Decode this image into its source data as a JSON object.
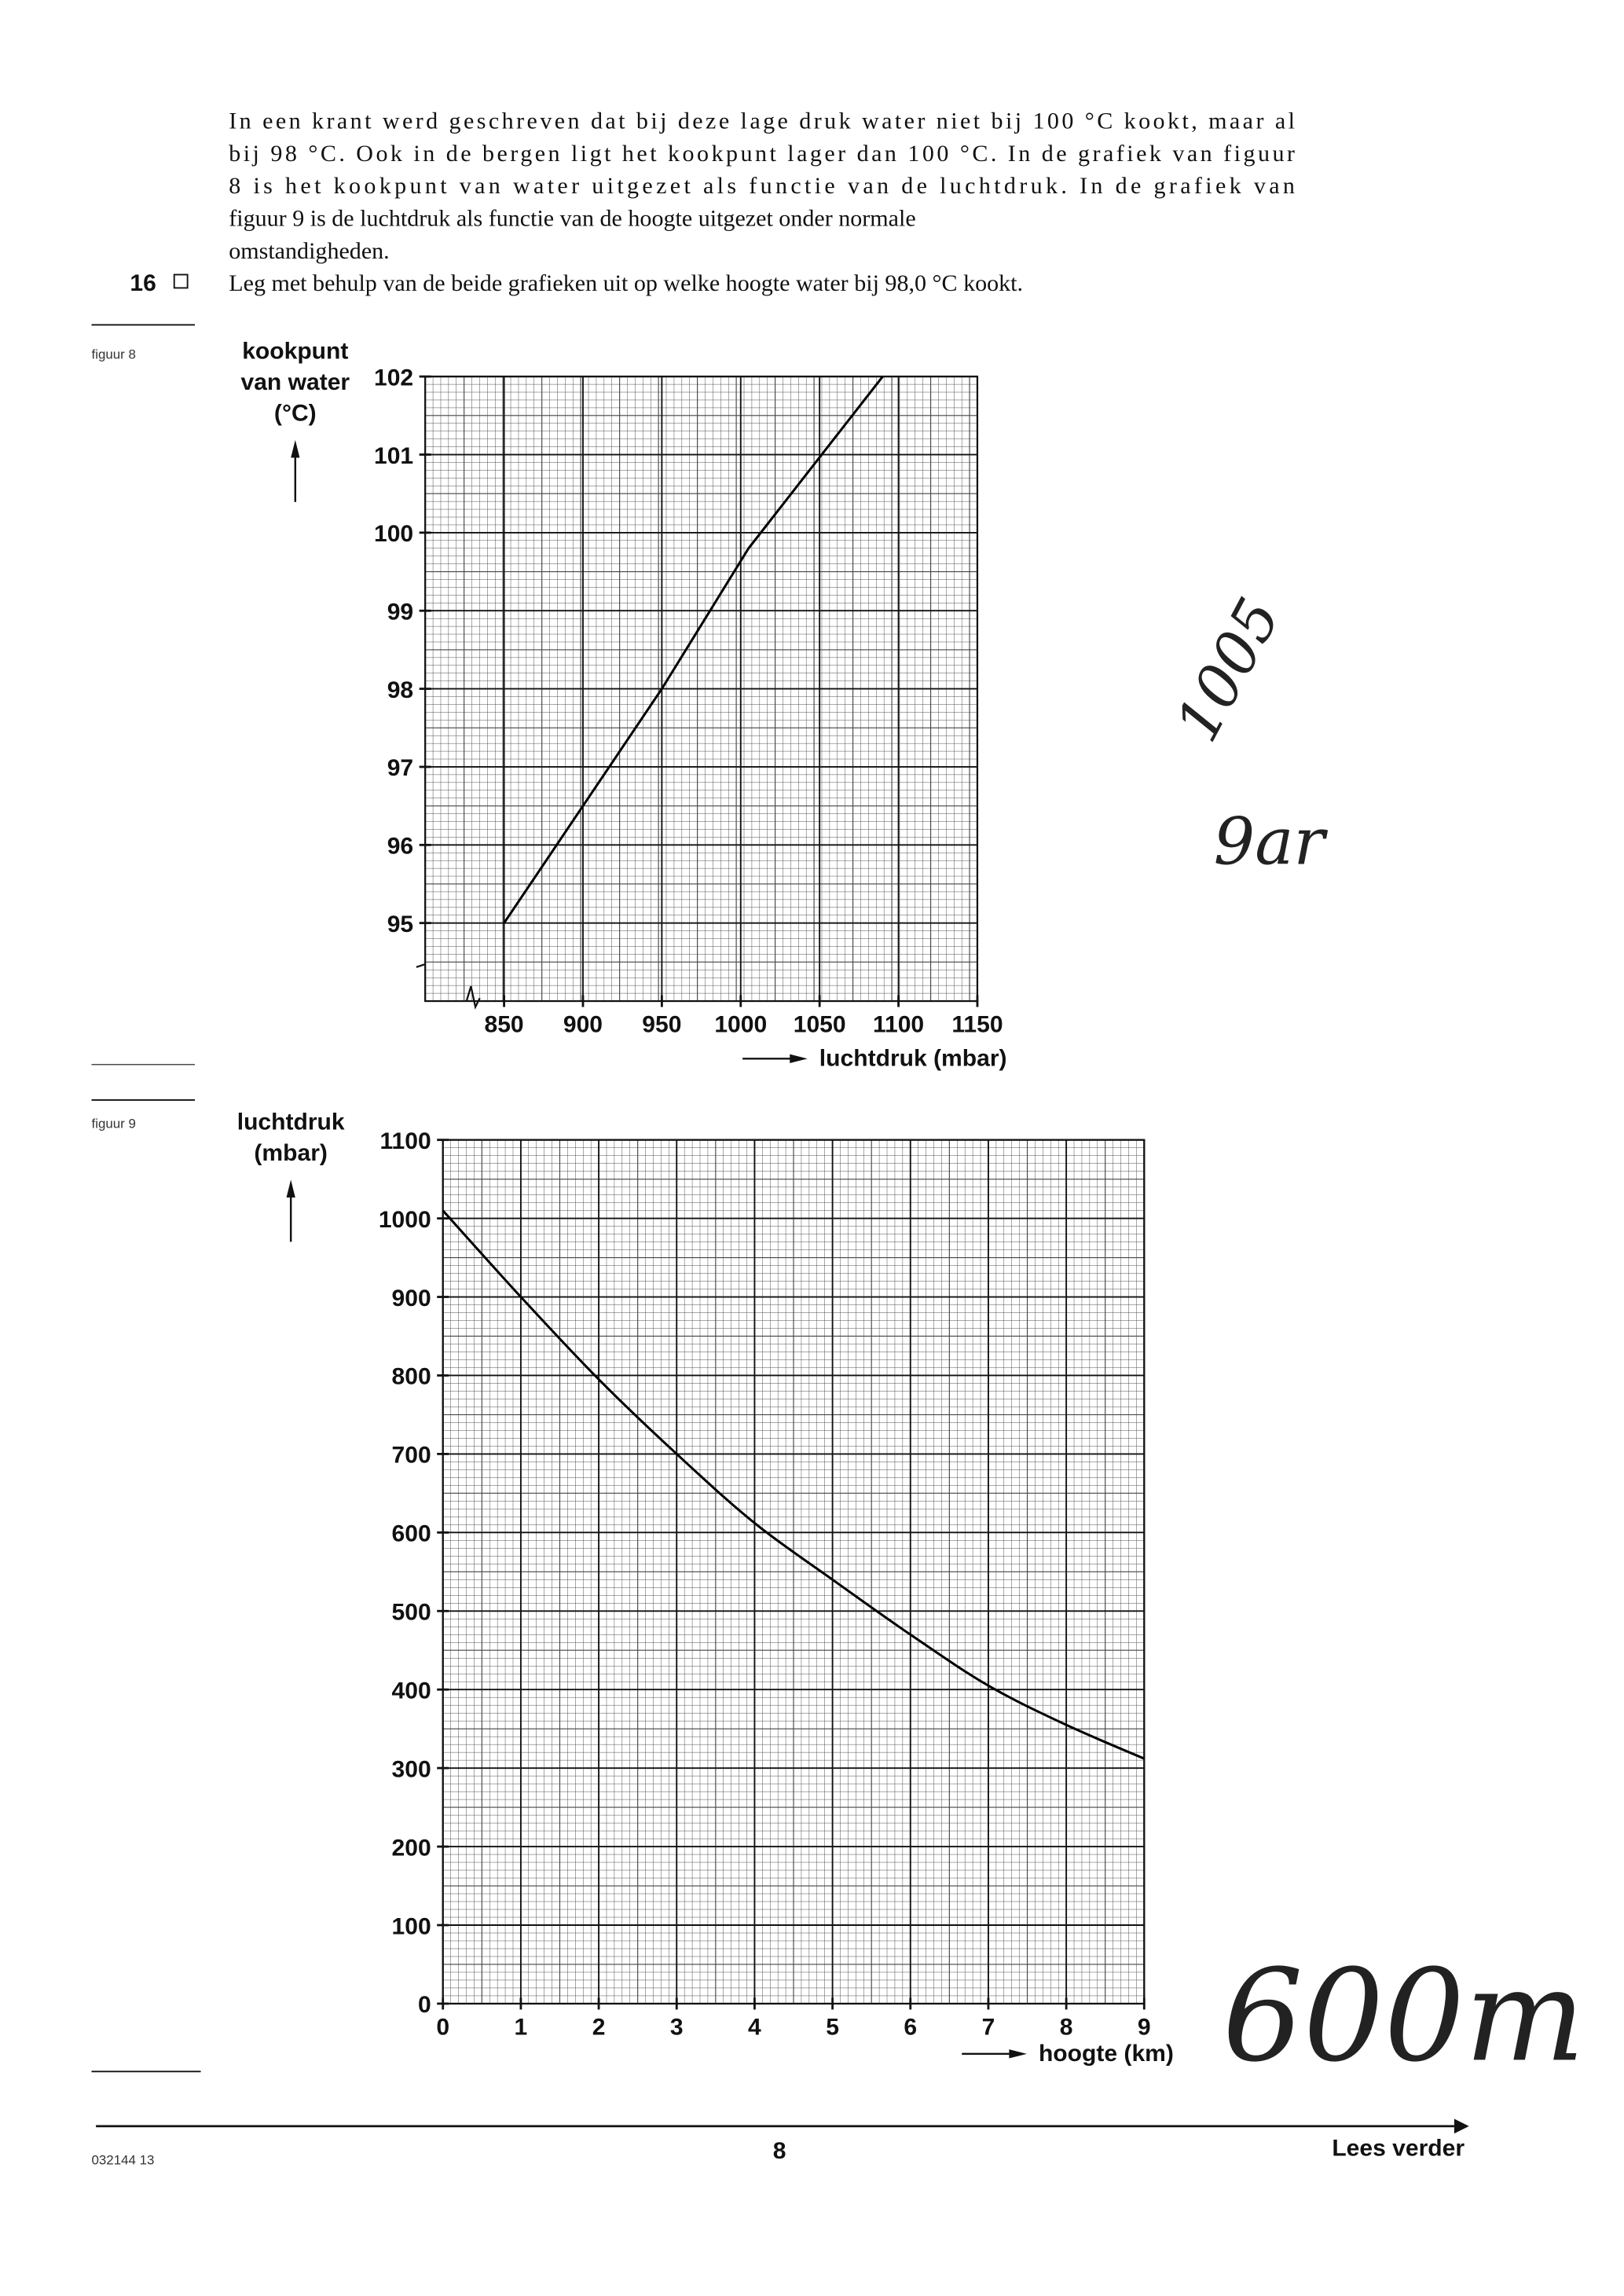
{
  "text": {
    "paragraph": [
      "In een krant werd geschreven dat bij deze lage druk water niet bij 100 °C kookt, maar al",
      "bij 98 °C. Ook in de bergen ligt het kookpunt lager dan 100 °C. In de grafiek van figuur",
      "8 is het kookpunt van water uitgezet als functie van de luchtdruk. In de grafiek van",
      "figuur 9 is de luchtdruk als functie van de hoogte uitgezet onder normale",
      "omstandigheden."
    ],
    "question_number": "16",
    "question": "Leg met behulp van de beide grafieken uit op welke hoogte water bij 98,0 °C kookt."
  },
  "chart_data": [
    {
      "type": "line",
      "label": "figuur 8",
      "y_label": [
        "kookpunt",
        "van water",
        "(°C)"
      ],
      "x_label": "luchtdruk (mbar)",
      "x": [
        850,
        950,
        1005,
        1090
      ],
      "values": [
        95,
        98,
        99.8,
        102
      ],
      "color": "#000000",
      "xlim": [
        800,
        1150
      ],
      "ylim": [
        94,
        102
      ],
      "xticks": [
        850,
        900,
        950,
        1000,
        1050,
        1100,
        1150
      ],
      "yticks": [
        95,
        96,
        97,
        98,
        99,
        100,
        101,
        102
      ],
      "grid": true
    },
    {
      "type": "line",
      "label": "figuur 9",
      "y_label": [
        "luchtdruk",
        "(mbar)"
      ],
      "x_label": "hoogte (km)",
      "x": [
        0,
        1,
        2,
        3,
        4,
        5,
        6,
        7,
        8,
        9
      ],
      "values": [
        1010,
        900,
        795,
        700,
        612,
        540,
        470,
        405,
        355,
        312
      ],
      "color": "#000000",
      "xlim": [
        0,
        9
      ],
      "ylim": [
        0,
        1100
      ],
      "xticks": [
        0,
        1,
        2,
        3,
        4,
        5,
        6,
        7,
        8,
        9
      ],
      "yticks": [
        0,
        100,
        200,
        300,
        400,
        500,
        600,
        700,
        800,
        900,
        1000,
        1100
      ],
      "grid": true
    }
  ],
  "annotations": [
    "1005",
    "9ar",
    "600m"
  ],
  "footer": {
    "code": "032144  13",
    "page": "8",
    "next": "Lees verder"
  }
}
